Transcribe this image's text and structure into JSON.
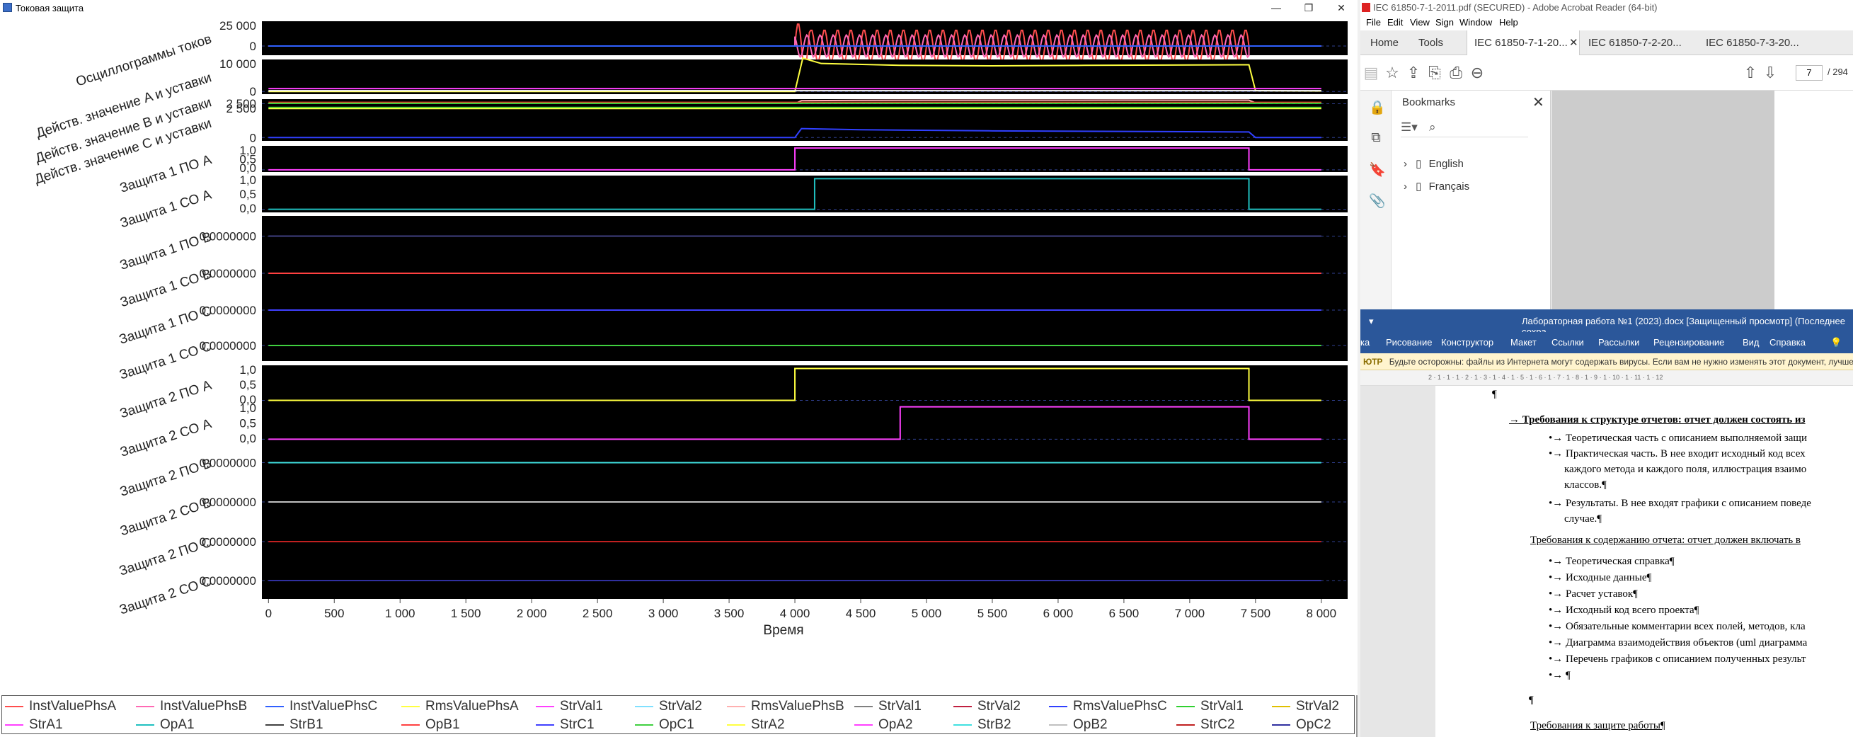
{
  "left_window": {
    "title": "Токовая защита",
    "controls": [
      "—",
      "❐",
      "✕"
    ]
  },
  "chart_data": {
    "type": "line",
    "xlabel": "Время",
    "xlim": [
      0,
      8000
    ],
    "x_ticks": [
      "0",
      "500",
      "1 000",
      "1 500",
      "2 000",
      "2 500",
      "3 000",
      "3 500",
      "4 000",
      "4 500",
      "5 000",
      "5 500",
      "6 000",
      "6 500",
      "7 000",
      "7 500",
      "8 000"
    ],
    "x_tick_values": [
      0,
      500,
      1000,
      1500,
      2000,
      2500,
      3000,
      3500,
      4000,
      4500,
      5000,
      5500,
      6000,
      6500,
      7000,
      7500,
      8000
    ],
    "subplots": [
      {
        "label": "Осциллограммы токов",
        "yticks": [
          "25 000",
          "0"
        ],
        "ylim": [
          -10000,
          27000
        ],
        "series": [
          {
            "name": "InstValuePhsA",
            "color": "#ff4d4d",
            "kind": "osc",
            "start": 4000,
            "end": 7450,
            "amp": 18000,
            "peak": 25000,
            "amp_after": 700
          },
          {
            "name": "InstValuePhsB",
            "color": "#ff69b4",
            "kind": "osc",
            "start": 4000,
            "end": 7450,
            "amp": 12000,
            "phase": 2.1
          },
          {
            "name": "InstValuePhsC",
            "color": "#3060ff",
            "kind": "flat",
            "value": 0
          }
        ]
      },
      {
        "label": "Действ. значение A и уставки",
        "yticks": [
          "10 000",
          "0"
        ],
        "ylim": [
          -1000,
          12000
        ],
        "series": [
          {
            "name": "RmsValuePhsA",
            "color": "#ffff40",
            "kind": "rms",
            "start": 4000,
            "end": 7450,
            "points": [
              [
                0,
                0
              ],
              [
                4000,
                0
              ],
              [
                4060,
                12500
              ],
              [
                4200,
                10500
              ],
              [
                4800,
                9800
              ],
              [
                5500,
                9600
              ],
              [
                6200,
                9800
              ],
              [
                7400,
                10000
              ],
              [
                7450,
                10000
              ],
              [
                7500,
                300
              ],
              [
                8000,
                200
              ]
            ]
          },
          {
            "name": "StrVal1",
            "color": "#ff40ff",
            "kind": "flat",
            "value": 1100
          },
          {
            "name": "StrVal2",
            "color": "#ffffff",
            "kind": "flat",
            "value": 300
          }
        ]
      },
      {
        "label": "Действ. значение B и уставки",
        "yticks": [
          "2 500"
        ],
        "ylim": [
          -200,
          3000
        ],
        "series": [
          {
            "name": "RmsValuePhsB",
            "color": "#ffb0b0",
            "kind": "rms",
            "points": [
              [
                0,
                0
              ],
              [
                4000,
                150
              ],
              [
                4050,
                2000
              ],
              [
                4500,
                2200
              ],
              [
                5500,
                2300
              ],
              [
                6500,
                2350
              ],
              [
                7400,
                2300
              ],
              [
                7450,
                2300
              ],
              [
                7500,
                600
              ],
              [
                8000,
                500
              ]
            ]
          },
          {
            "name": "StrVal1",
            "color": "#ff3030",
            "kind": "flat",
            "value": 900
          },
          {
            "name": "StrVal2",
            "color": "#30d030",
            "kind": "flat",
            "value": 300
          }
        ]
      },
      {
        "label": "Действ. значение C и уставки",
        "yticks": [
          "2 500",
          "0"
        ],
        "ylim": [
          -300,
          3000
        ],
        "series": [
          {
            "name": "RmsValuePhsC",
            "color": "#3040ff",
            "kind": "rms",
            "points": [
              [
                0,
                0
              ],
              [
                4000,
                0
              ],
              [
                4050,
                800
              ],
              [
                4500,
                700
              ],
              [
                5500,
                600
              ],
              [
                6500,
                550
              ],
              [
                7400,
                500
              ],
              [
                7450,
                500
              ],
              [
                7500,
                0
              ],
              [
                8000,
                0
              ]
            ]
          },
          {
            "name": "StrVal1",
            "color": "#30d030",
            "kind": "flat",
            "value": 2700
          },
          {
            "name": "StrVal2",
            "color": "#ffff40",
            "kind": "flat",
            "value": 2600
          }
        ]
      },
      {
        "label": "Защита 1 ПО А",
        "yticks": [
          "1,0",
          "0,5",
          "0,0"
        ],
        "ylim": [
          -0.1,
          1.1
        ],
        "series": [
          {
            "name": "StrA1",
            "color": "#ff40ff",
            "kind": "step",
            "start": 4000,
            "end": 7450
          }
        ]
      },
      {
        "label": "Защита 1 СО А",
        "yticks": [
          "1,0",
          "0,5",
          "0,0"
        ],
        "ylim": [
          -0.1,
          1.1
        ],
        "series": [
          {
            "name": "OpA1",
            "color": "#20c0c0",
            "kind": "step",
            "start": 4150,
            "end": 7450
          }
        ]
      },
      {
        "label": "Защита 1 ПО В",
        "yticks": [
          "0,0000000"
        ],
        "ylim": [
          -1,
          1
        ],
        "series": [
          {
            "name": "StrB1",
            "color": "#404080",
            "kind": "flat",
            "value": 0
          }
        ]
      },
      {
        "label": "Защита 1 СО В",
        "yticks": [
          "0,0000000"
        ],
        "ylim": [
          -1,
          1
        ],
        "series": [
          {
            "name": "OpB1",
            "color": "#ff4040",
            "kind": "flat",
            "value": 0
          }
        ]
      },
      {
        "label": "Защита 1 ПО С",
        "yticks": [
          "0,0000000"
        ],
        "ylim": [
          -1,
          1
        ],
        "series": [
          {
            "name": "StrC1",
            "color": "#4040ff",
            "kind": "flat",
            "value": 0
          }
        ]
      },
      {
        "label": "Защита 1 СО С",
        "yticks": [
          "0,0000000"
        ],
        "ylim": [
          -1,
          1
        ],
        "series": [
          {
            "name": "OpC1",
            "color": "#40d040",
            "kind": "flat",
            "value": 0
          }
        ]
      },
      {
        "label": "Защита 2 ПО А",
        "yticks": [
          "1,0",
          "0,5",
          "0,0"
        ],
        "ylim": [
          -0.1,
          1.1
        ],
        "series": [
          {
            "name": "StrA2",
            "color": "#ffff40",
            "kind": "step",
            "start": 4000,
            "end": 7450
          }
        ]
      },
      {
        "label": "Защита 2 СО А",
        "yticks": [
          "1,0",
          "0,5",
          "0,0"
        ],
        "ylim": [
          -0.1,
          1.1
        ],
        "series": [
          {
            "name": "OpA2",
            "color": "#ff40ff",
            "kind": "step",
            "start": 4800,
            "end": 7450
          }
        ]
      },
      {
        "label": "Защита 2 ПО В",
        "yticks": [
          "0,0000000"
        ],
        "ylim": [
          -1,
          1
        ],
        "series": [
          {
            "name": "StrB2",
            "color": "#40e0e0",
            "kind": "flat",
            "value": 0
          }
        ]
      },
      {
        "label": "Защита 2 СО В",
        "yticks": [
          "0,0000000"
        ],
        "ylim": [
          -1,
          1
        ],
        "series": [
          {
            "name": "OpB2",
            "color": "#c0c0c0",
            "kind": "flat",
            "value": 0
          }
        ]
      },
      {
        "label": "Защита 2 ПО С",
        "yticks": [
          "0,0000000"
        ],
        "ylim": [
          -1,
          1
        ],
        "series": [
          {
            "name": "StrC2",
            "color": "#c02020",
            "kind": "flat",
            "value": 0
          }
        ]
      },
      {
        "label": "Защита 2 СО С",
        "yticks": [
          "0,0000000"
        ],
        "ylim": [
          -1,
          1
        ],
        "series": [
          {
            "name": "OpC2",
            "color": "#3030a0",
            "kind": "flat",
            "value": 0
          }
        ]
      }
    ]
  },
  "legend": {
    "row1": [
      {
        "name": "InstValuePhsA",
        "color": "#ff4d4d"
      },
      {
        "name": "InstValuePhsB",
        "color": "#ff69b4"
      },
      {
        "name": "InstValuePhsC",
        "color": "#3060ff"
      },
      {
        "name": "RmsValuePhsA",
        "color": "#ffff40"
      },
      {
        "name": "StrVal1",
        "color": "#ff40ff"
      },
      {
        "name": "StrVal2",
        "color": "#80e0ff"
      },
      {
        "name": "RmsValuePhsB",
        "color": "#ffb0b0"
      },
      {
        "name": "StrVal1",
        "color": "#808080"
      },
      {
        "name": "StrVal2",
        "color": "#c02040"
      },
      {
        "name": "RmsValuePhsC",
        "color": "#3040ff"
      },
      {
        "name": "StrVal1",
        "color": "#30d030"
      },
      {
        "name": "StrVal2",
        "color": "#e0c000"
      }
    ],
    "row2": [
      {
        "name": "StrA1",
        "color": "#ff40ff"
      },
      {
        "name": "OpA1",
        "color": "#20c0c0"
      },
      {
        "name": "StrB1",
        "color": "#404040"
      },
      {
        "name": "OpB1",
        "color": "#ff4040"
      },
      {
        "name": "StrC1",
        "color": "#4040ff"
      },
      {
        "name": "OpC1",
        "color": "#40d040"
      },
      {
        "name": "StrA2",
        "color": "#ffff40"
      },
      {
        "name": "OpA2",
        "color": "#ff40ff"
      },
      {
        "name": "StrB2",
        "color": "#40e0e0"
      },
      {
        "name": "OpB2",
        "color": "#c0c0c0"
      },
      {
        "name": "StrC2",
        "color": "#c02020"
      },
      {
        "name": "OpC2",
        "color": "#3030a0"
      }
    ]
  },
  "acrobat": {
    "title": "IEC 61850-7-1-2011.pdf (SECURED) - Adobe Acrobat Reader (64-bit)",
    "menu": [
      "File",
      "Edit",
      "View",
      "Sign",
      "Window",
      "Help"
    ],
    "tabs": [
      "Home",
      "Tools",
      "IEC 61850-7-1-20...",
      "IEC 61850-7-2-20...",
      "IEC 61850-7-3-20..."
    ],
    "page_current": "7",
    "page_total": "/ 294",
    "bookmarks_title": "Bookmarks",
    "bookmarks": [
      "English",
      "Français"
    ]
  },
  "word": {
    "title": "Лабораторная работа №1 (2023).docx [Защищенный просмотр] (Последнее сохра",
    "ribbon": [
      "ка",
      "Рисование",
      "Конструктор",
      "Макет",
      "Ссылки",
      "Рассылки",
      "Рецензирование",
      "Вид",
      "Справка"
    ],
    "warning_tag": "ЮТР",
    "warning": "Будьте осторожны: файлы из Интернета могут содержать вирусы. Если вам не нужно изменять этот документ, лучше р",
    "ruler": "2 · 1 · 1 · 1 · 2 · 1 · 3 · 1 · 4 · 1 · 5 · 1 · 6 · 1 · 7 · 1 · 8 · 1 · 9 · 1 · 10 · 1 · 11 · 1 · 12",
    "lines": [
      "¶",
      "→ Требования к структуре отчетов: отчет должен состоять из",
      "•→ Теоретическая часть с описанием выполняемой защи",
      "•→ Практическая часть. В нее входит исходный код всех",
      "каждого метода и каждого поля, иллюстрация взаимо",
      "классов.¶",
      "•→ Результаты. В нее входят графики с описанием поведе",
      "случае.¶",
      "Требования к содержанию отчета: отчет должен включать в",
      "•→ Теоретическая справка¶",
      "•→ Исходные данные¶",
      "•→ Расчет уставок¶",
      "•→ Исходный код всего проекта¶",
      "•→ Обязательные комментарии всех полей, методов, кла",
      "•→ Диаграмма взаимодействия объектов (uml диаграмма",
      "•→ Перечень графиков с описанием полученных результ",
      "•→ ¶",
      "¶",
      "Требования к защите работы¶"
    ]
  }
}
